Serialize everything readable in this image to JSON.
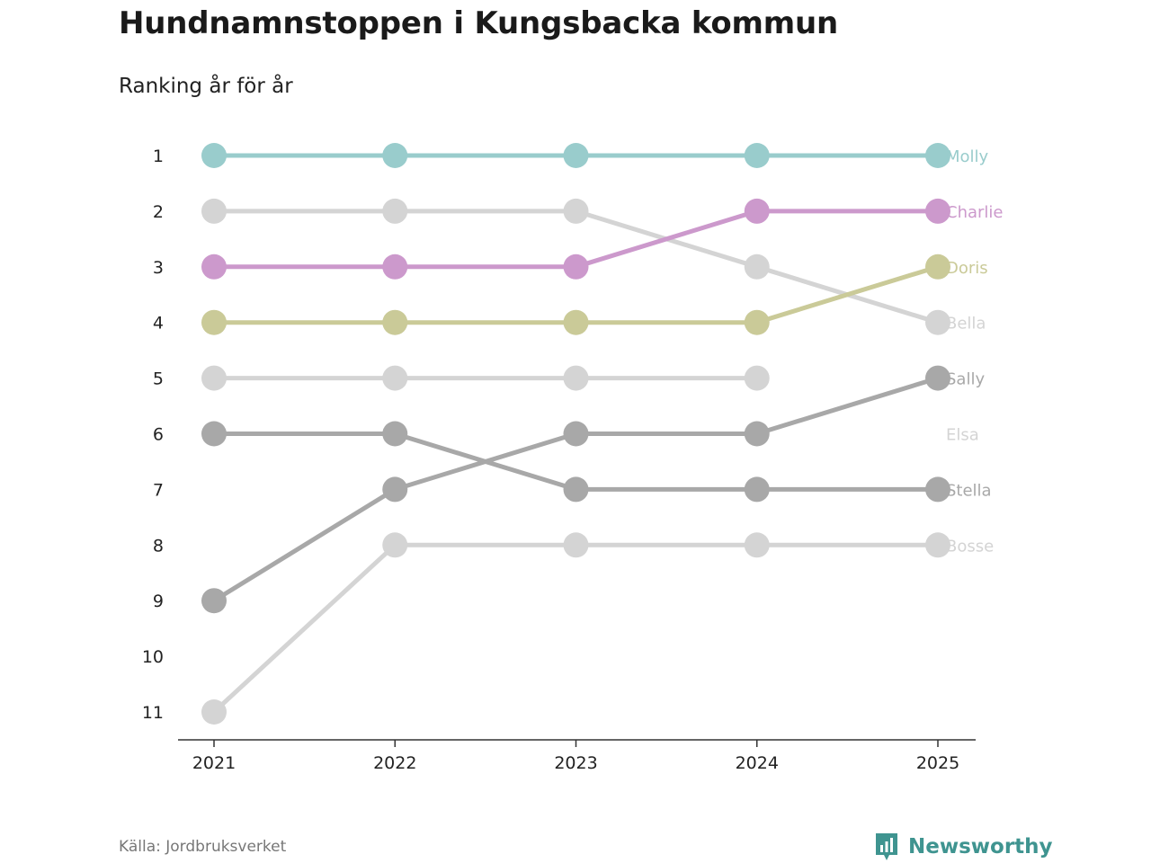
{
  "title": "Hundnamnstoppen i Kungsbacka kommun",
  "subtitle": "Ranking år för år",
  "source": "Källa: Jordbruksverket",
  "brand": "Newsworthy",
  "chart_data": {
    "type": "line",
    "subtype": "bump",
    "x": [
      "2021",
      "2022",
      "2023",
      "2024",
      "2025"
    ],
    "y_ticks": [
      1,
      2,
      3,
      4,
      5,
      6,
      7,
      8,
      9,
      10,
      11
    ],
    "ylim": [
      1,
      11
    ],
    "y_inverted": true,
    "xlabel": "",
    "ylabel": "",
    "grid": false,
    "series": [
      {
        "name": "Bosse",
        "color": "#d4d4d4",
        "values": [
          11,
          8,
          8,
          8,
          8
        ]
      },
      {
        "name": "Elsa",
        "color": "#d4d4d4",
        "values": [
          5,
          5,
          5,
          5,
          null
        ]
      },
      {
        "name": "Bella",
        "color": "#d4d4d4",
        "values": [
          2,
          2,
          2,
          3,
          4
        ]
      },
      {
        "name": "Stella",
        "color": "#a8a8a8",
        "values": [
          6,
          6,
          7,
          7,
          7
        ]
      },
      {
        "name": "Sally",
        "color": "#a8a8a8",
        "values": [
          9,
          7,
          6,
          6,
          5
        ]
      },
      {
        "name": "Doris",
        "color": "#caca98",
        "values": [
          4,
          4,
          4,
          4,
          3
        ]
      },
      {
        "name": "Charlie",
        "color": "#cc99cc",
        "values": [
          3,
          3,
          3,
          2,
          2
        ]
      },
      {
        "name": "Molly",
        "color": "#99cccc",
        "values": [
          1,
          1,
          1,
          1,
          1
        ]
      }
    ]
  },
  "colors": {
    "axis": "#333333",
    "brand": "#3f9490"
  },
  "icons": {
    "brand_logo": "bar-chart-speech-bubble-icon"
  }
}
